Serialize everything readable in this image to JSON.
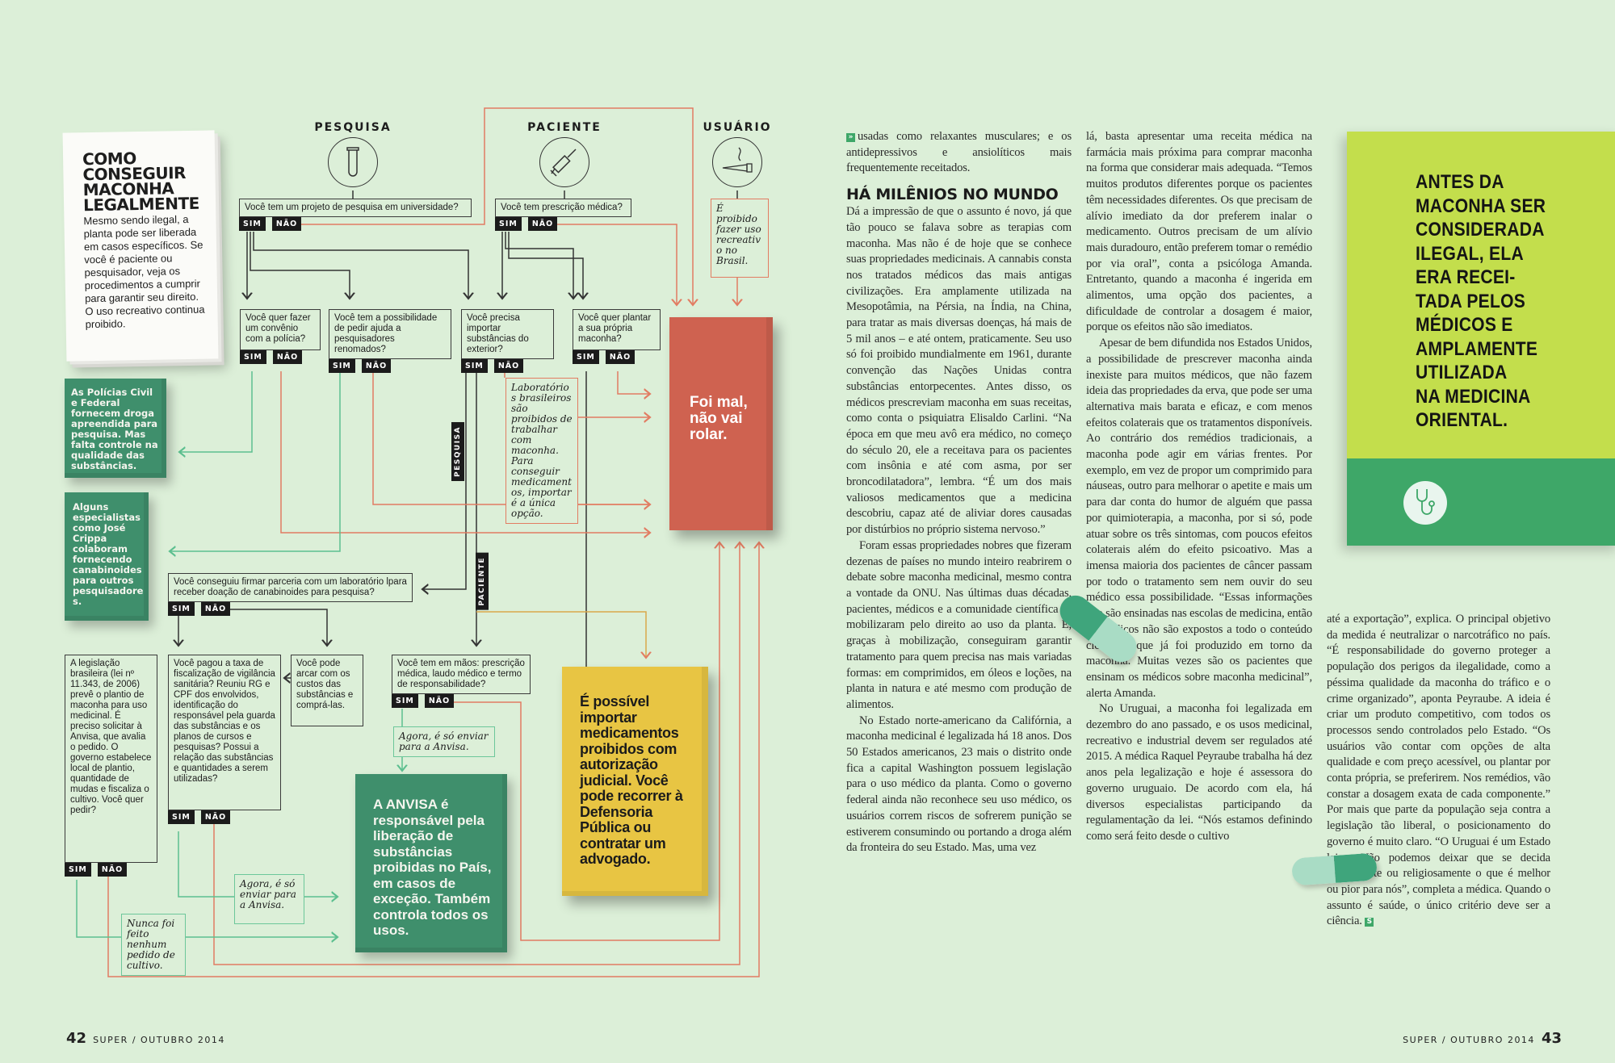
{
  "colors": {
    "background": "#dcefd8",
    "red": "#cf6250",
    "green": "#3f8f6c",
    "yellow": "#e8c543",
    "book_lime": "#c3de4c",
    "book_green": "#3ea768",
    "line_red": "#e27c62",
    "line_green": "#6cc79a"
  },
  "intro": {
    "title": "COMO\nCONSEGUIR\nMACONHA\nLEGALMENTE",
    "text": "Mesmo sendo ilegal, a planta pode ser liberada em casos específicos. Se você é paciente ou pesquisador, veja os procedimentos a cumprir para garantir seu direito. O uso recreativo continua proibido."
  },
  "flow": {
    "yes": "SIM",
    "no": "NÃO",
    "categories": [
      {
        "label": "PESQUISA",
        "icon": "test-tube-icon"
      },
      {
        "label": "PACIENTE",
        "icon": "syringe-icon"
      },
      {
        "label": "USUÁRIO",
        "icon": "cigarette-icon"
      }
    ],
    "q_research": "Você tem um projeto de pesquisa em universidade?",
    "q_prescription": "Você tem prescrição médica?",
    "user_note": "É proibido fazer uso recreativo no Brasil.",
    "q_police": "Você quer fazer um convênio com a polícia?",
    "q_researchers": "Você tem a possibilidade de pedir ajuda a pesquisadores renomados?",
    "q_import": "Você precisa importar substâncias do exterior?",
    "q_plant": "Você quer plantar a sua própria maconha?",
    "red_box": "Foi mal, não vai rolar.",
    "police_box": "As Polícias Civil e Federal fornecem droga apreendida para pesquisa. Mas falta controle na qualidade das substâncias.",
    "experts_box": "Alguns especialistas como José Crippa colaboram fornecendo canabinoides para outros pesquisadores.",
    "lab_note": "Laboratórios brasileiros são proibidos de trabalhar com maconha. Para conseguir medicamentos, importar é a única opção.",
    "label_research": "PESQUISA",
    "label_patient": "PACIENTE",
    "q_lab": "Você conseguiu firmar parceria com um laboratório lpara receber doação de canabinoides para pesquisa?",
    "legislation": "A legislação brasileira (lei nº 11.343, de 2006) prevê o plantio de maconha para uso medicinal. É preciso solicitar à Anvisa, que avalia o pedido. O governo estabelece local de plantio, quantidade de mudas e fiscaliza o cultivo. Você quer pedir?",
    "q_fee": "Você pagou a taxa de fiscalização de vigilância sanitária? Reuniu RG e CPF dos envolvidos, identificação do responsável pela guarda das substâncias e os planos de cursos e pesquisas? Possui a relação das substâncias e quantidades a serem utilizadas?",
    "q_costs": "Você pode arcar com os custos das substâncias e comprá-las.",
    "q_documents": "Você tem em mãos: prescrição médica, laudo médico e termo de responsabilidade?",
    "send_note_1": "Agora, é só enviar para a Anvisa.",
    "send_note_2": "Agora, é só enviar para a Anvisa.",
    "never_note": "Nunca foi feito nenhum pedido de cultivo.",
    "anvisa_box": "A ANVISA é responsável pela liberação de substâncias proibidas no País, em casos de exceção. Também controla todos os usos.",
    "yellow_box": "É possível importar medicamentos proibidos com autorização judicial. Você pode recorrer à Defensoria Pública ou contratar um advogado."
  },
  "article": {
    "col1": {
      "p1": "usadas como relaxantes musculares; e os antidepressivos e ansiolíticos mais frequentemente receitados.",
      "heading": "HÁ MILÊNIOS NO MUNDO",
      "p2": "Dá a impressão de que o assunto é novo, já que tão pouco se falava sobre as terapias com maconha. Mas não é de hoje que se conhece suas propriedades medicinais. A cannabis consta nos tratados médicos das mais antigas civilizações. Era amplamente utilizada na Mesopotâmia, na Pérsia, na Índia, na China, para tratar as mais diversas doenças, há mais de 5 mil anos – e até ontem, praticamente. Seu uso só foi proibido mundialmente em 1961, durante convenção das Nações Unidas contra substâncias entorpecentes. Antes disso, os médicos prescreviam maconha em suas receitas, como conta o psiquiatra Elisaldo Carlini. “Na época em que meu avô era médico, no começo do século 20, ele a receitava para os pacientes com insônia e até com asma, por ser broncodilatadora”, lembra. “É um dos mais valiosos medicamentos que a medicina descobriu, capaz até de aliviar dores causadas por distúrbios no próprio sistema nervoso.”",
      "p3": "Foram essas propriedades nobres que fizeram dezenas de países no mundo inteiro reabrirem o debate sobre maconha medicinal, mesmo contra a vontade da ONU. Nas últimas duas décadas, pacientes, médicos e a comunidade científica se mobilizaram pelo direito ao uso da planta. E, graças à mobilização, conseguiram garantir tratamento para quem precisa nas mais variadas formas: em comprimidos, em óleos e loções, na planta in natura e até mesmo com produção de alimentos.",
      "p4": "No Estado norte-americano da Califórnia, a maconha medicinal é legalizada há 18 anos. Dos 50 Estados americanos, 23 mais o distrito onde fica a capital Washington possuem legislação para o uso médico da planta. Como o governo federal ainda não reconhece seu uso médico, os usuários correm riscos de sofrerem punição se estiverem consumindo ou portando a droga além da fronteira do seu Estado. Mas, uma vez"
    },
    "col2": {
      "p1": "lá, basta apresentar uma receita médica na farmácia mais próxima para comprar maconha na forma que considerar mais adequada. “Temos muitos produtos diferentes porque os pacientes têm necessidades diferentes. Os que precisam de alívio imediato da dor preferem inalar o medicamento. Outros precisam de um alívio mais duradouro, então preferem tomar o remédio por via oral”, conta a psicóloga Amanda. Entretanto, quando a maconha é ingerida em alimentos, uma opção dos pacientes, a dificuldade de controlar a dosagem é maior, porque os efeitos não são imediatos.",
      "p2": "Apesar de bem difundida nos Estados Unidos, a possibilidade de prescrever maconha ainda inexiste para muitos médicos, que não fazem ideia das propriedades da erva, que pode ser uma alternativa mais barata e eficaz, e com menos efeitos colaterais que os tratamentos disponíveis. Ao contrário dos remédios tradicionais, a maconha pode agir em várias frentes. Por exemplo, em vez de propor um comprimido para náuseas, outro para melhorar o apetite e mais um para dar conta do humor de alguém que passa por quimioterapia, a maconha, por si só, pode atuar sobre os três sintomas, com poucos efeitos colaterais além do efeito psicoativo. Mas a imensa maioria dos pacientes de câncer passam por todo o tratamento sem nem ouvir do seu médico essa possibilidade. “Essas informações não são ensinadas nas escolas de medicina, então os médicos não são expostos a todo o conteúdo científico que já foi produzido em torno da maconha. Muitas vezes são os pacientes que ensinam os médicos sobre maconha medicinal”, alerta Amanda.",
      "p3": "No Uruguai, a maconha foi legalizada em dezembro do ano passado, e os usos medicinal, recreativo e industrial devem ser regulados até 2015. A médica Raquel Peyraube trabalha há dez anos pela legalização e hoje é assessora do governo uruguaio. De acordo com ela, há diversos especialistas participando da regulamentação da lei. “Nós estamos definindo como será feito desde o cultivo"
    },
    "col3": {
      "p1": "até a exportação”, explica. O principal objetivo da medida é neutralizar o narcotráfico no país. “É responsabilidade do governo proteger a população dos perigos da ilegalidade, como a péssima qualidade da maconha do tráfico e o crime organizado”, aponta Peyraube. A ideia é criar um produto competitivo, com todos os processos sendo controlados pelo Estado. “Os usuários vão contar com opções de alta qualidade e com preço acessível, ou plantar por conta própria, se preferirem. Nos remédios, vão constar a dosagem exata de cada componente.” Por mais que parte da população seja contra a legislação tão liberal, o posicionamento do governo é muito claro. “O Uruguai é um Estado laico. Não podemos deixar que se decida moralmente ou religiosamente o que é melhor ou pior para nós”, completa a médica. Quando o assunto é saúde, o único critério deve ser a ciência.",
      "end_mark": "S"
    },
    "continuation_mark": "»"
  },
  "sidebar_box": {
    "text": "ANTES DA\nMACONHA SER\nCONSIDERADA\nILEGAL, ELA\nERA RECEI-\nTADA PELOS\nMÉDICOS E\nAMPLAMENTE\nUTILIZADA\nNA MEDICINA\nORIENTAL.",
    "icon": "stethoscope-icon"
  },
  "footer": {
    "left_page": "42",
    "right_page": "43",
    "magazine": "SUPER / OUTUBRO 2014"
  }
}
